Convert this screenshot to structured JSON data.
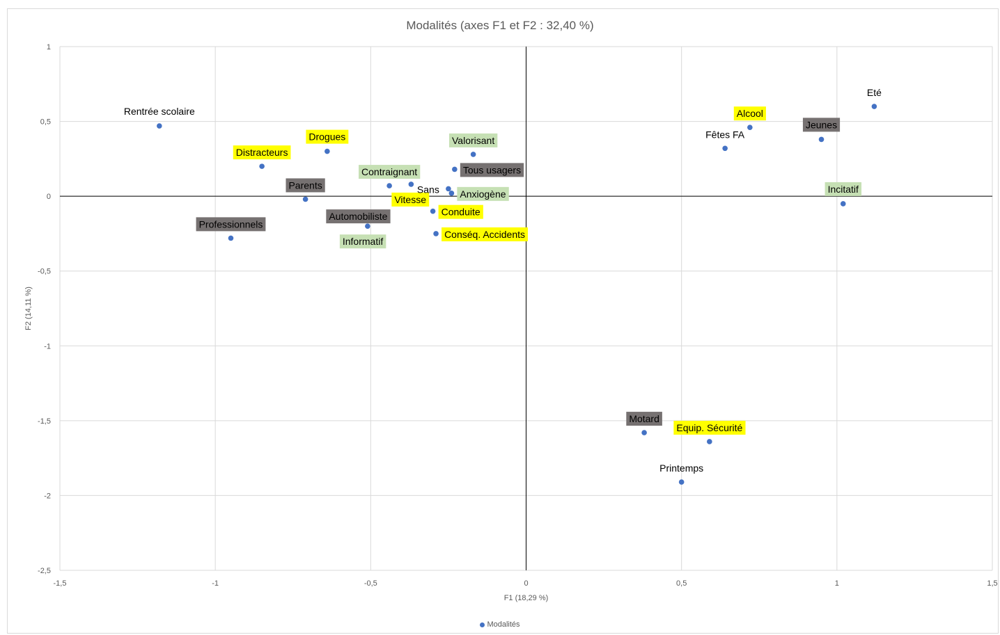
{
  "chart_data": {
    "type": "scatter",
    "title": "Modalités (axes F1 et F2 : 32,40 %)",
    "xlabel": "F1 (18,29 %)",
    "ylabel": "F2 (14,11 %)",
    "xlim": [
      -1.5,
      1.5
    ],
    "ylim": [
      -2.5,
      1
    ],
    "x_ticks": [
      "-1,5",
      "-1",
      "-0,5",
      "0",
      "0,5",
      "1",
      "1,5"
    ],
    "y_ticks": [
      "1",
      "0,5",
      "0",
      "-0,5",
      "-1",
      "-1,5",
      "-2",
      "-2,5"
    ],
    "grid": true,
    "legend": {
      "position": "bottom",
      "entries": [
        "Modalités"
      ]
    },
    "colors": {
      "marker": "#4472c4",
      "yellow": "#ffff00",
      "green": "#c6e0b4",
      "gray": "#767171",
      "grid": "#d9d9d9",
      "axis": "#000000"
    },
    "series": [
      {
        "name": "Modalités",
        "points": [
          {
            "label": "Rentrée scolaire",
            "x": -1.18,
            "y": 0.47,
            "style": "plain"
          },
          {
            "label": "Drogues",
            "x": -0.64,
            "y": 0.3,
            "style": "yellow"
          },
          {
            "label": "Distracteurs",
            "x": -0.85,
            "y": 0.2,
            "style": "yellow"
          },
          {
            "label": "Parents",
            "x": -0.71,
            "y": -0.02,
            "style": "gray"
          },
          {
            "label": "Professionnels",
            "x": -0.95,
            "y": -0.28,
            "style": "gray"
          },
          {
            "label": "Automobiliste",
            "x": -0.5,
            "y": -0.13,
            "style": "gray"
          },
          {
            "label": "Informatif",
            "x": -0.51,
            "y": -0.2,
            "style": "green"
          },
          {
            "label": "Contraignant",
            "x": -0.44,
            "y": 0.07,
            "style": "green"
          },
          {
            "label": "Vitesse",
            "x": -0.37,
            "y": 0.08,
            "style": "yellow"
          },
          {
            "label": "Valorisant",
            "x": -0.17,
            "y": 0.28,
            "style": "green"
          },
          {
            "label": "Tous usagers",
            "x": -0.23,
            "y": 0.18,
            "style": "gray"
          },
          {
            "label": "Sans",
            "x": -0.25,
            "y": 0.05,
            "style": "plain"
          },
          {
            "label": "Anxiogène",
            "x": -0.24,
            "y": 0.02,
            "style": "green"
          },
          {
            "label": "Conduite",
            "x": -0.3,
            "y": -0.1,
            "style": "yellow"
          },
          {
            "label": "Conséq. Accidents",
            "x": -0.29,
            "y": -0.25,
            "style": "yellow"
          },
          {
            "label": "Eté",
            "x": 1.12,
            "y": 0.6,
            "style": "plain"
          },
          {
            "label": "Alcool",
            "x": 0.72,
            "y": 0.46,
            "style": "yellow"
          },
          {
            "label": "Fêtes FA",
            "x": 0.64,
            "y": 0.32,
            "style": "plain"
          },
          {
            "label": "Jeunes",
            "x": 0.95,
            "y": 0.38,
            "style": "gray"
          },
          {
            "label": "Incitatif",
            "x": 1.02,
            "y": -0.05,
            "style": "green"
          },
          {
            "label": "Motard",
            "x": 0.38,
            "y": -1.58,
            "style": "gray"
          },
          {
            "label": "Equip. Sécurité",
            "x": 0.59,
            "y": -1.64,
            "style": "yellow"
          },
          {
            "label": "Printemps",
            "x": 0.5,
            "y": -1.91,
            "style": "plain"
          }
        ]
      }
    ]
  }
}
